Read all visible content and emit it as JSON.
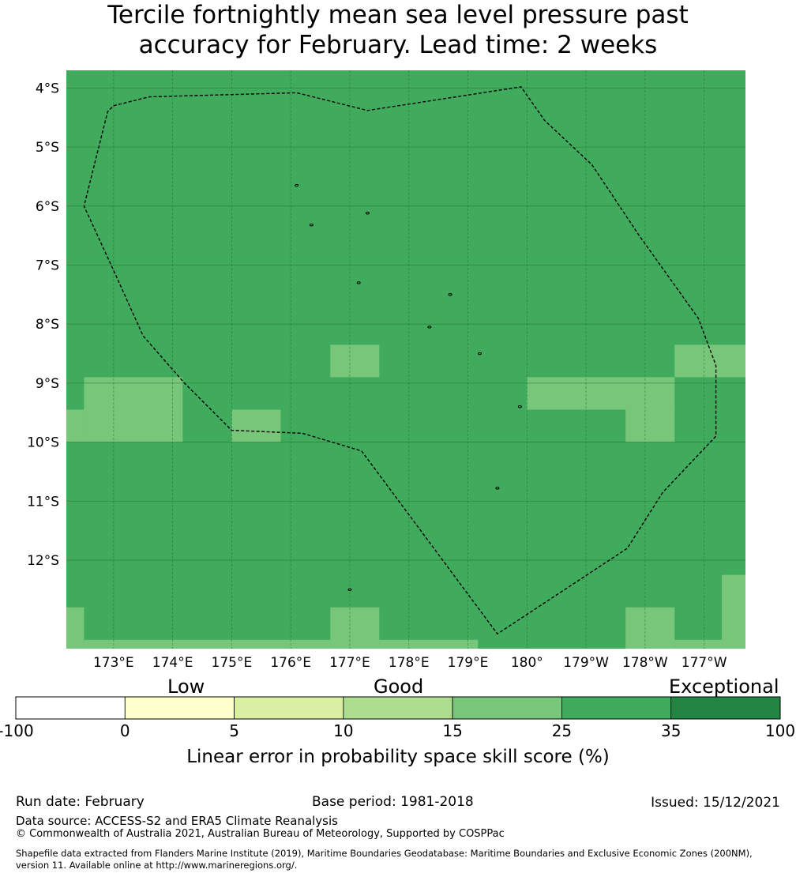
{
  "title_line1": "Tercile fortnightly mean sea level pressure past",
  "title_line2": "accuracy for February. Lead time: 2 weeks",
  "map": {
    "lon_range": [
      172.2,
      183.7
    ],
    "lat_range": [
      -3.7,
      -13.5
    ],
    "lat_ticks": [
      {
        "value": -4,
        "label": "4°S"
      },
      {
        "value": -5,
        "label": "5°S"
      },
      {
        "value": -6,
        "label": "6°S"
      },
      {
        "value": -7,
        "label": "7°S"
      },
      {
        "value": -8,
        "label": "8°S"
      },
      {
        "value": -9,
        "label": "9°S"
      },
      {
        "value": -10,
        "label": "10°S"
      },
      {
        "value": -11,
        "label": "11°S"
      },
      {
        "value": -12,
        "label": "12°S"
      }
    ],
    "lon_ticks": [
      {
        "value": 173,
        "label": "173°E"
      },
      {
        "value": 174,
        "label": "174°E"
      },
      {
        "value": 175,
        "label": "175°E"
      },
      {
        "value": 176,
        "label": "176°E"
      },
      {
        "value": 177,
        "label": "177°E"
      },
      {
        "value": 178,
        "label": "178°E"
      },
      {
        "value": 179,
        "label": "179°E"
      },
      {
        "value": 180,
        "label": "180°"
      },
      {
        "value": 181,
        "label": "179°W"
      },
      {
        "value": 182,
        "label": "178°W"
      },
      {
        "value": 183,
        "label": "177°W"
      }
    ],
    "background_category": "25-35",
    "patches_15_25": [
      {
        "lon": [
          176.67,
          177.5
        ],
        "lat": [
          -8.35,
          -8.9
        ]
      },
      {
        "lon": [
          182.5,
          183.7
        ],
        "lat": [
          -8.35,
          -8.9
        ]
      },
      {
        "lon": [
          172.5,
          174.17
        ],
        "lat": [
          -8.9,
          -10.0
        ]
      },
      {
        "lon": [
          172.2,
          172.5
        ],
        "lat": [
          -9.45,
          -10.0
        ]
      },
      {
        "lon": [
          175.0,
          175.83
        ],
        "lat": [
          -9.45,
          -10.0
        ]
      },
      {
        "lon": [
          180.0,
          182.5
        ],
        "lat": [
          -8.9,
          -9.45
        ]
      },
      {
        "lon": [
          181.67,
          182.5
        ],
        "lat": [
          -9.45,
          -10.0
        ]
      },
      {
        "lon": [
          172.2,
          172.5
        ],
        "lat": [
          -12.8,
          -13.5
        ]
      },
      {
        "lon": [
          172.5,
          176.67
        ],
        "lat": [
          -13.35,
          -13.5
        ]
      },
      {
        "lon": [
          176.67,
          177.5
        ],
        "lat": [
          -12.8,
          -13.5
        ]
      },
      {
        "lon": [
          177.5,
          179.17
        ],
        "lat": [
          -13.35,
          -13.5
        ]
      },
      {
        "lon": [
          181.67,
          182.5
        ],
        "lat": [
          -12.8,
          -13.5
        ]
      },
      {
        "lon": [
          182.5,
          183.3
        ],
        "lat": [
          -13.35,
          -13.5
        ]
      },
      {
        "lon": [
          183.3,
          183.7
        ],
        "lat": [
          -12.25,
          -13.5
        ]
      }
    ],
    "eez_boundary": [
      [
        173.0,
        -4.3
      ],
      [
        173.6,
        -4.15
      ],
      [
        176.1,
        -4.08
      ],
      [
        177.3,
        -4.38
      ],
      [
        179.9,
        -3.98
      ],
      [
        180.3,
        -4.55
      ],
      [
        181.1,
        -5.3
      ],
      [
        181.9,
        -6.5
      ],
      [
        182.9,
        -7.9
      ],
      [
        183.2,
        -8.7
      ],
      [
        183.2,
        -9.2
      ],
      [
        183.2,
        -9.9
      ],
      [
        182.3,
        -10.85
      ],
      [
        181.7,
        -11.8
      ],
      [
        179.5,
        -13.25
      ],
      [
        177.2,
        -10.15
      ],
      [
        176.2,
        -9.85
      ],
      [
        175.0,
        -9.8
      ],
      [
        174.2,
        -9.0
      ],
      [
        173.5,
        -8.2
      ],
      [
        173.05,
        -7.2
      ],
      [
        172.5,
        -6.0
      ],
      [
        172.9,
        -4.4
      ],
      [
        173.0,
        -4.3
      ]
    ],
    "islands": [
      [
        176.1,
        -5.65
      ],
      [
        176.35,
        -6.32
      ],
      [
        177.3,
        -6.12
      ],
      [
        177.15,
        -7.3
      ],
      [
        178.7,
        -7.5
      ],
      [
        178.35,
        -8.05
      ],
      [
        179.2,
        -8.5
      ],
      [
        179.88,
        -9.4
      ],
      [
        179.5,
        -10.78
      ],
      [
        177.0,
        -12.5
      ]
    ]
  },
  "colorbar": {
    "category_low": "Low",
    "category_good": "Good",
    "category_exceptional": "Exceptional",
    "bins": [
      {
        "from": "-100",
        "to": "0",
        "color": "#ffffff"
      },
      {
        "from": "0",
        "to": "5",
        "color": "#ffffcc"
      },
      {
        "from": "5",
        "to": "10",
        "color": "#d9f0a3"
      },
      {
        "from": "10",
        "to": "15",
        "color": "#addd8e"
      },
      {
        "from": "15",
        "to": "25",
        "color": "#78c679"
      },
      {
        "from": "25",
        "to": "35",
        "color": "#41ab5d"
      },
      {
        "from": "35",
        "to": "100",
        "color": "#238443"
      }
    ],
    "tick_labels": [
      "-100",
      "0",
      "5",
      "10",
      "15",
      "25",
      "35",
      "100"
    ],
    "label": "Linear error in probability space skill score (%)"
  },
  "footer": {
    "run_date": "Run date: February",
    "base_period": "Base period: 1981-2018",
    "issued": "Issued: 15/12/2021",
    "data_source": "Data source: ACCESS-S2 and ERA5 Climate Reanalysis",
    "copyright": "© Commonwealth of Australia 2021, Australian Bureau of Meteorology, Supported by COSPPac",
    "shapefile_line1": "Shapefile data extracted from Flanders Marine Institute (2019), Maritime Boundaries Geodatabase: Maritime Boundaries and Exclusive Economic Zones (200NM),",
    "shapefile_line2": "version 11. Available online at http://www.marineregions.org/."
  }
}
